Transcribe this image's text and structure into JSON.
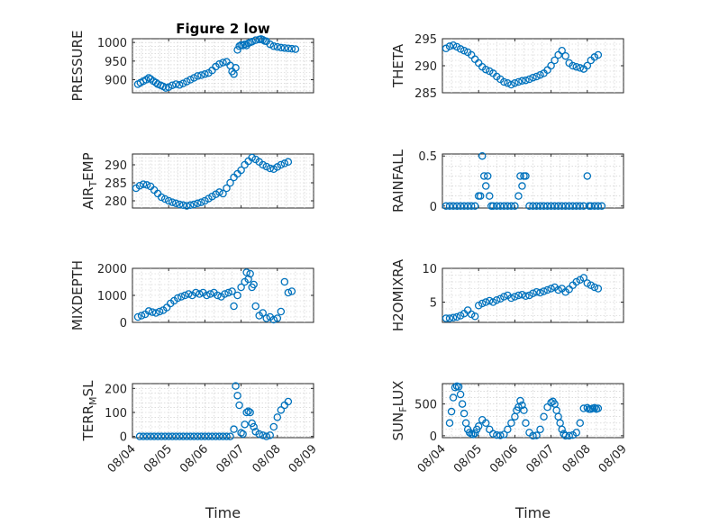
{
  "chart_data": [
    {
      "type": "scatter",
      "title": "Figure 2 low",
      "ylabel": "PRESSURE",
      "ylabel_sub": null,
      "xlabel": "",
      "xlim": [
        0,
        5
      ],
      "ylim": [
        865,
        1010
      ],
      "yticks": [
        900,
        950,
        1000
      ],
      "x_tick_labels": [
        "08/04",
        "08/05",
        "08/06",
        "08/07",
        "08/08",
        "08/09"
      ],
      "show_x_ticklabels": false,
      "grid": true,
      "x": [
        0.15,
        0.22,
        0.3,
        0.38,
        0.45,
        0.5,
        0.58,
        0.65,
        0.7,
        0.78,
        0.85,
        0.92,
        1.0,
        1.1,
        1.2,
        1.3,
        1.4,
        1.5,
        1.6,
        1.7,
        1.8,
        1.9,
        2.0,
        2.1,
        2.2,
        2.3,
        2.4,
        2.5,
        2.6,
        2.7,
        2.75,
        2.8,
        2.85,
        2.9,
        2.95,
        3.0,
        3.05,
        3.1,
        3.15,
        3.2,
        3.25,
        3.3,
        3.4,
        3.5,
        3.55,
        3.6,
        3.65,
        3.7,
        3.8,
        3.9,
        4.0,
        4.1,
        4.2,
        4.3,
        4.4,
        4.5
      ],
      "y": [
        888,
        892,
        896,
        900,
        905,
        902,
        896,
        892,
        888,
        885,
        882,
        878,
        880,
        885,
        888,
        886,
        890,
        895,
        900,
        905,
        910,
        912,
        915,
        918,
        925,
        935,
        942,
        946,
        948,
        938,
        922,
        915,
        932,
        980,
        990,
        993,
        992,
        995,
        992,
        998,
        1000,
        1002,
        1006,
        1008,
        1009,
        1007,
        1004,
        1003,
        995,
        990,
        988,
        986,
        985,
        984,
        983,
        982
      ]
    },
    {
      "type": "scatter",
      "title": "",
      "ylabel": "THETA",
      "ylabel_sub": null,
      "xlabel": "",
      "xlim": [
        0,
        5
      ],
      "ylim": [
        285,
        295
      ],
      "yticks": [
        285,
        290,
        295
      ],
      "x_tick_labels": [
        "08/04",
        "08/05",
        "08/06",
        "08/07",
        "08/08",
        "08/09"
      ],
      "show_x_ticklabels": false,
      "grid": true,
      "x": [
        0.1,
        0.2,
        0.3,
        0.4,
        0.5,
        0.6,
        0.7,
        0.8,
        0.9,
        1.0,
        1.1,
        1.2,
        1.3,
        1.4,
        1.5,
        1.6,
        1.7,
        1.8,
        1.9,
        2.0,
        2.1,
        2.2,
        2.3,
        2.4,
        2.5,
        2.6,
        2.7,
        2.8,
        2.9,
        3.0,
        3.1,
        3.2,
        3.3,
        3.4,
        3.5,
        3.6,
        3.7,
        3.8,
        3.9,
        4.0,
        4.1,
        4.2,
        4.3
      ],
      "y": [
        293.2,
        293.6,
        293.8,
        293.5,
        293.1,
        292.8,
        292.5,
        292.0,
        291.2,
        290.5,
        289.8,
        289.3,
        289.0,
        288.6,
        288.0,
        287.5,
        287.0,
        286.8,
        286.5,
        286.8,
        287.0,
        287.2,
        287.3,
        287.5,
        287.8,
        288.0,
        288.3,
        288.6,
        289.2,
        290.0,
        291.0,
        292.0,
        292.8,
        291.8,
        290.5,
        290.0,
        289.8,
        289.6,
        289.4,
        290.0,
        291.0,
        291.6,
        292.0
      ]
    },
    {
      "type": "scatter",
      "title": "",
      "ylabel": "AIR",
      "ylabel_sub": "T",
      "ylabel_rest": "EMP",
      "xlabel": "",
      "xlim": [
        0,
        5
      ],
      "ylim": [
        278,
        293
      ],
      "yticks": [
        280,
        285,
        290
      ],
      "x_tick_labels": [
        "08/04",
        "08/05",
        "08/06",
        "08/07",
        "08/08",
        "08/09"
      ],
      "show_x_ticklabels": false,
      "grid": true,
      "x": [
        0.1,
        0.2,
        0.3,
        0.4,
        0.5,
        0.6,
        0.7,
        0.8,
        0.9,
        1.0,
        1.1,
        1.2,
        1.3,
        1.4,
        1.5,
        1.6,
        1.7,
        1.8,
        1.9,
        2.0,
        2.1,
        2.2,
        2.3,
        2.4,
        2.5,
        2.6,
        2.7,
        2.8,
        2.9,
        3.0,
        3.1,
        3.2,
        3.3,
        3.4,
        3.5,
        3.6,
        3.7,
        3.8,
        3.9,
        4.0,
        4.1,
        4.2,
        4.3
      ],
      "y": [
        283.5,
        284.2,
        284.6,
        284.4,
        284.0,
        283.0,
        282.0,
        281.0,
        280.5,
        280.0,
        279.6,
        279.3,
        279.0,
        278.8,
        278.6,
        278.8,
        279.0,
        279.3,
        279.6,
        280.0,
        280.6,
        281.2,
        281.8,
        282.4,
        282.0,
        283.5,
        285.0,
        286.5,
        287.5,
        288.5,
        290.0,
        291.0,
        292.0,
        291.5,
        290.8,
        290.0,
        289.5,
        289.0,
        288.8,
        289.4,
        290.0,
        290.4,
        290.8
      ]
    },
    {
      "type": "scatter",
      "title": "",
      "ylabel": "RAINFALL",
      "ylabel_sub": null,
      "xlabel": "",
      "xlim": [
        0,
        5
      ],
      "ylim": [
        -0.02,
        0.52
      ],
      "yticks": [
        0,
        0.5
      ],
      "x_tick_labels": [
        "08/04",
        "08/05",
        "08/06",
        "08/07",
        "08/08",
        "08/09"
      ],
      "show_x_ticklabels": false,
      "grid": true,
      "x": [
        0.1,
        0.2,
        0.3,
        0.4,
        0.5,
        0.6,
        0.7,
        0.8,
        0.9,
        1.0,
        1.05,
        1.1,
        1.15,
        1.2,
        1.25,
        1.3,
        1.35,
        1.4,
        1.5,
        1.6,
        1.7,
        1.8,
        1.9,
        2.0,
        2.1,
        2.15,
        2.2,
        2.25,
        2.3,
        2.4,
        2.5,
        2.6,
        2.7,
        2.8,
        2.9,
        3.0,
        3.1,
        3.2,
        3.3,
        3.4,
        3.5,
        3.6,
        3.7,
        3.8,
        3.9,
        4.0,
        4.05,
        4.1,
        4.2,
        4.3,
        4.4
      ],
      "y": [
        0,
        0,
        0,
        0,
        0,
        0,
        0,
        0,
        0,
        0.1,
        0.1,
        0.5,
        0.3,
        0.2,
        0.3,
        0.1,
        0,
        0,
        0,
        0,
        0,
        0,
        0,
        0,
        0.1,
        0.3,
        0.2,
        0.3,
        0.3,
        0,
        0,
        0,
        0,
        0,
        0,
        0,
        0,
        0,
        0,
        0,
        0,
        0,
        0,
        0,
        0,
        0.3,
        0,
        0,
        0,
        0,
        0
      ]
    },
    {
      "type": "scatter",
      "title": "",
      "ylabel": "MIXDEPTH",
      "ylabel_sub": null,
      "xlabel": "",
      "xlim": [
        0,
        5
      ],
      "ylim": [
        0,
        2000
      ],
      "yticks": [
        0,
        1000,
        2000
      ],
      "x_tick_labels": [
        "08/04",
        "08/05",
        "08/06",
        "08/07",
        "08/08",
        "08/09"
      ],
      "show_x_ticklabels": false,
      "grid": true,
      "x": [
        0.15,
        0.25,
        0.35,
        0.45,
        0.55,
        0.65,
        0.75,
        0.85,
        0.95,
        1.05,
        1.15,
        1.25,
        1.35,
        1.45,
        1.55,
        1.65,
        1.75,
        1.85,
        1.95,
        2.05,
        2.15,
        2.25,
        2.35,
        2.45,
        2.55,
        2.65,
        2.75,
        2.8,
        2.9,
        3.0,
        3.1,
        3.15,
        3.2,
        3.25,
        3.3,
        3.35,
        3.4,
        3.5,
        3.6,
        3.7,
        3.8,
        3.9,
        4.0,
        4.1,
        4.2,
        4.3,
        4.4
      ],
      "y": [
        200,
        250,
        300,
        420,
        380,
        350,
        400,
        450,
        550,
        700,
        800,
        900,
        950,
        1000,
        1050,
        1000,
        1100,
        1050,
        1100,
        1000,
        1050,
        1100,
        1000,
        950,
        1050,
        1100,
        1150,
        600,
        1000,
        1300,
        1500,
        1850,
        1600,
        1800,
        1300,
        1400,
        600,
        250,
        350,
        150,
        200,
        100,
        150,
        400,
        1500,
        1100,
        1150
      ]
    },
    {
      "type": "scatter",
      "title": "",
      "ylabel": "H2OMIXRA",
      "ylabel_sub": null,
      "xlabel": "",
      "xlim": [
        0,
        5
      ],
      "ylim": [
        2,
        10
      ],
      "yticks": [
        5,
        10
      ],
      "x_tick_labels": [
        "08/04",
        "08/05",
        "08/06",
        "08/07",
        "08/08",
        "08/09"
      ],
      "show_x_ticklabels": false,
      "grid": true,
      "x": [
        0.1,
        0.2,
        0.3,
        0.4,
        0.5,
        0.6,
        0.7,
        0.8,
        0.9,
        1.0,
        1.1,
        1.2,
        1.3,
        1.4,
        1.5,
        1.6,
        1.7,
        1.8,
        1.9,
        2.0,
        2.1,
        2.2,
        2.3,
        2.4,
        2.5,
        2.6,
        2.7,
        2.8,
        2.9,
        3.0,
        3.1,
        3.2,
        3.3,
        3.4,
        3.5,
        3.6,
        3.7,
        3.8,
        3.9,
        4.0,
        4.1,
        4.2,
        4.3
      ],
      "y": [
        2.6,
        2.6,
        2.7,
        2.8,
        3.0,
        3.3,
        3.8,
        3.2,
        2.9,
        4.5,
        4.8,
        5.0,
        5.2,
        5.0,
        5.3,
        5.5,
        5.8,
        6.0,
        5.6,
        5.8,
        6.0,
        6.1,
        5.9,
        6.0,
        6.3,
        6.5,
        6.4,
        6.6,
        6.8,
        7.0,
        7.2,
        6.8,
        7.0,
        6.5,
        6.9,
        7.5,
        8.0,
        8.3,
        8.6,
        7.8,
        7.5,
        7.2,
        7.0
      ]
    },
    {
      "type": "scatter",
      "title": "",
      "ylabel": "TERR",
      "ylabel_sub": "M",
      "ylabel_rest": "SL",
      "xlabel": "Time",
      "xlim": [
        0,
        5
      ],
      "ylim": [
        -5,
        220
      ],
      "yticks": [
        0,
        100,
        200
      ],
      "x_tick_labels": [
        "08/04",
        "08/05",
        "08/06",
        "08/07",
        "08/08",
        "08/09"
      ],
      "show_x_ticklabels": true,
      "grid": true,
      "x": [
        0.2,
        0.3,
        0.4,
        0.5,
        0.6,
        0.7,
        0.8,
        0.9,
        1.0,
        1.1,
        1.2,
        1.3,
        1.4,
        1.5,
        1.6,
        1.7,
        1.8,
        1.9,
        2.0,
        2.1,
        2.2,
        2.3,
        2.4,
        2.5,
        2.6,
        2.7,
        2.8,
        2.85,
        2.9,
        2.95,
        3.0,
        3.05,
        3.1,
        3.15,
        3.2,
        3.25,
        3.3,
        3.35,
        3.4,
        3.5,
        3.6,
        3.7,
        3.8,
        3.9,
        4.0,
        4.1,
        4.2,
        4.3
      ],
      "y": [
        0,
        0,
        0,
        0,
        0,
        0,
        0,
        0,
        0,
        0,
        0,
        0,
        0,
        0,
        0,
        0,
        0,
        0,
        0,
        0,
        0,
        0,
        0,
        0,
        0,
        0,
        30,
        210,
        170,
        130,
        15,
        10,
        50,
        100,
        105,
        100,
        55,
        40,
        20,
        10,
        5,
        0,
        5,
        40,
        80,
        110,
        130,
        145
      ]
    },
    {
      "type": "scatter",
      "title": "",
      "ylabel": "SUN",
      "ylabel_sub": "F",
      "ylabel_rest": "LUX",
      "xlabel": "Time",
      "xlim": [
        0,
        5
      ],
      "ylim": [
        -30,
        820
      ],
      "yticks": [
        0,
        500
      ],
      "x_tick_labels": [
        "08/04",
        "08/05",
        "08/06",
        "08/07",
        "08/08",
        "08/09"
      ],
      "show_x_ticklabels": true,
      "grid": true,
      "x": [
        0.2,
        0.25,
        0.3,
        0.35,
        0.4,
        0.45,
        0.5,
        0.55,
        0.6,
        0.65,
        0.7,
        0.75,
        0.8,
        0.85,
        0.9,
        0.95,
        1.0,
        1.1,
        1.2,
        1.3,
        1.4,
        1.5,
        1.6,
        1.7,
        1.8,
        1.9,
        2.0,
        2.05,
        2.1,
        2.15,
        2.2,
        2.25,
        2.3,
        2.4,
        2.5,
        2.6,
        2.7,
        2.8,
        2.9,
        3.0,
        3.05,
        3.1,
        3.15,
        3.2,
        3.25,
        3.3,
        3.35,
        3.4,
        3.5,
        3.6,
        3.7,
        3.8,
        3.9,
        4.0,
        4.05,
        4.1,
        4.15,
        4.2,
        4.25,
        4.3
      ],
      "y": [
        200,
        380,
        600,
        760,
        780,
        770,
        650,
        500,
        350,
        200,
        100,
        50,
        30,
        20,
        40,
        100,
        150,
        250,
        200,
        100,
        30,
        10,
        5,
        20,
        100,
        200,
        300,
        400,
        450,
        550,
        480,
        400,
        200,
        50,
        0,
        5,
        100,
        300,
        450,
        520,
        540,
        500,
        400,
        300,
        200,
        100,
        30,
        0,
        0,
        10,
        50,
        200,
        430,
        440,
        420,
        420,
        430,
        440,
        420,
        430
      ]
    }
  ]
}
